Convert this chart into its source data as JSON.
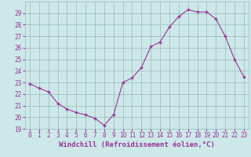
{
  "x": [
    0,
    1,
    2,
    3,
    4,
    5,
    6,
    7,
    8,
    9,
    10,
    11,
    12,
    13,
    14,
    15,
    16,
    17,
    18,
    19,
    20,
    21,
    22,
    23
  ],
  "y": [
    22.9,
    22.5,
    22.2,
    21.2,
    20.7,
    20.4,
    20.2,
    19.9,
    19.3,
    20.2,
    23.0,
    23.4,
    24.3,
    26.1,
    26.5,
    27.8,
    28.7,
    29.3,
    29.1,
    29.1,
    28.5,
    27.0,
    25.0,
    23.5
  ],
  "line_color": "#993399",
  "marker": "+",
  "bg_color": "#cce8e8",
  "grid_color": "#99bbbb",
  "xlabel": "Windchill (Refroidissement éolien,°C)",
  "xlim": [
    -0.5,
    23.5
  ],
  "ylim": [
    19,
    30
  ],
  "yticks": [
    19,
    20,
    21,
    22,
    23,
    24,
    25,
    26,
    27,
    28,
    29
  ],
  "xticks": [
    0,
    1,
    2,
    3,
    4,
    5,
    6,
    7,
    8,
    9,
    10,
    11,
    12,
    13,
    14,
    15,
    16,
    17,
    18,
    19,
    20,
    21,
    22,
    23
  ],
  "label_color": "#993399",
  "tick_color": "#993399",
  "tick_fontsize": 5.5,
  "xlabel_fontsize": 6.5
}
